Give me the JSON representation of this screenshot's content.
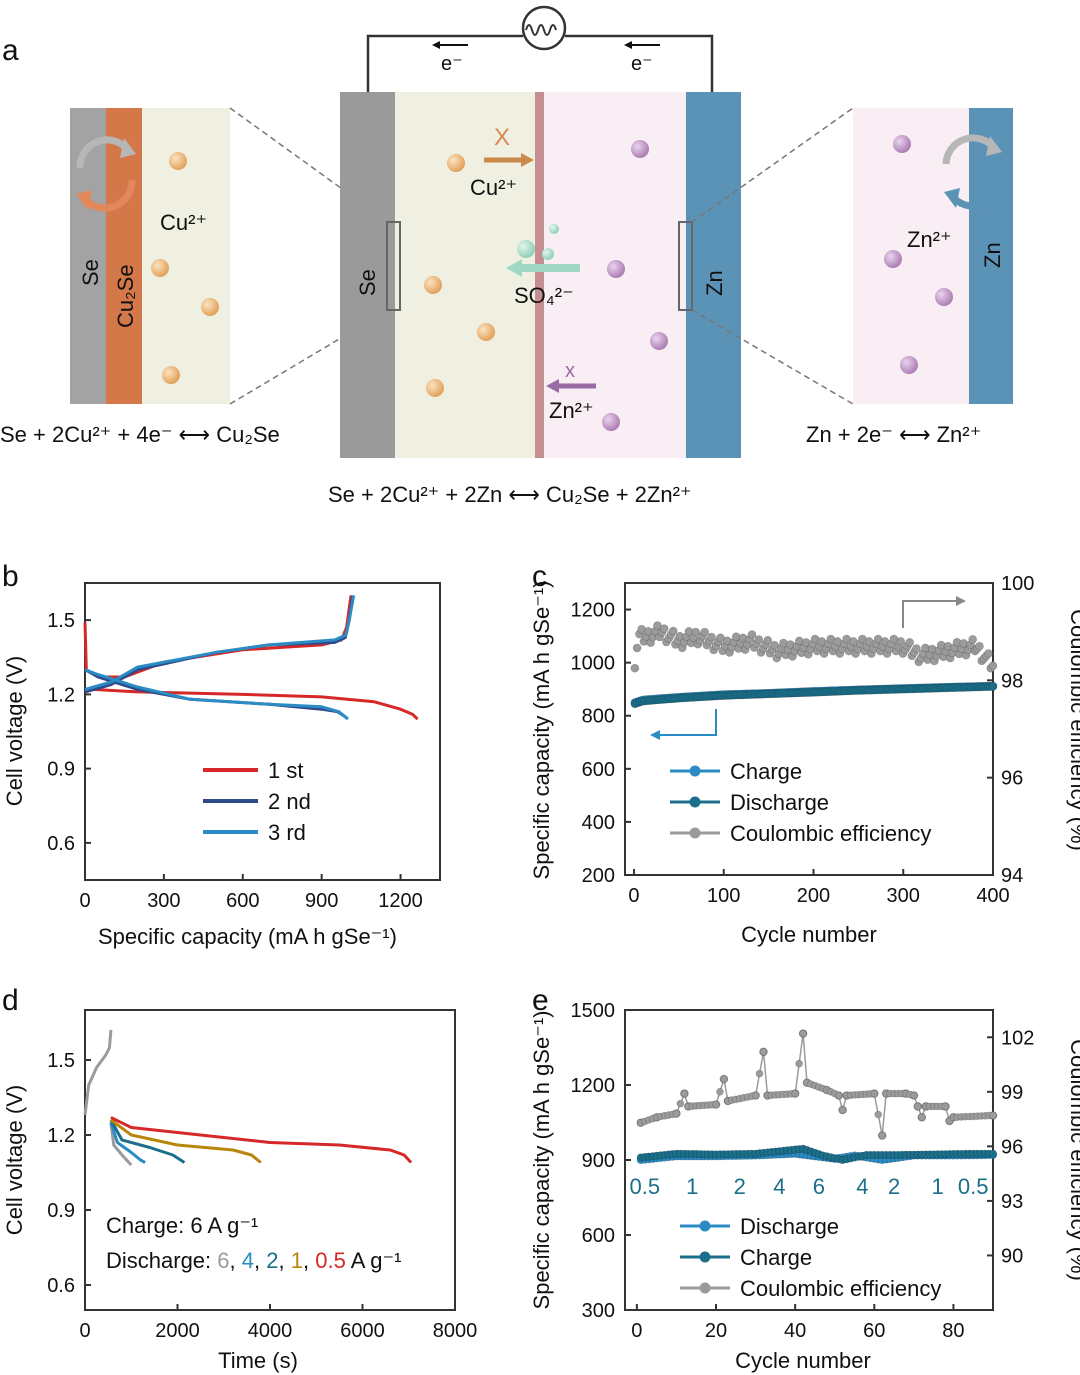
{
  "panels": {
    "a": "a",
    "b": "b",
    "c": "c",
    "d": "d",
    "e": "e"
  },
  "colors": {
    "se": "#9a9a9a",
    "cu2se": "#d4784a",
    "electrolyte_left": "#eff0e2",
    "electrolyte_right": "#f8eef3",
    "zn": "#5b93b7",
    "cu_ion": "#e9a964",
    "zn_ion": "#b98fbf",
    "separator": "#c48e92",
    "so4": "#9fd7c4",
    "red": "#d62828",
    "navy": "#2e4a8a",
    "blue": "#2b8cc4",
    "teal": "#1b7e98",
    "grey": "#9b9b9b",
    "gold": "#b8860b"
  },
  "schematic": {
    "electron_left": "e⁻",
    "electron_right": "e⁻",
    "left_zoom": {
      "se": "Se",
      "cu2se": "Cu₂Se",
      "ion": "Cu²⁺"
    },
    "cell": {
      "se": "Se",
      "zn": "Zn",
      "cu_ion": "Cu²⁺",
      "so4": "SO₄²⁻",
      "zn_ion": "Zn²⁺",
      "cross_cu": "X",
      "cross_zn": "x"
    },
    "right_zoom": {
      "zn": "Zn",
      "ion": "Zn²⁺"
    },
    "eq_left": "Se + 2Cu²⁺ + 4e⁻ ⟷ Cu₂Se",
    "eq_right": "Zn + 2e⁻ ⟷ Zn²⁺",
    "eq_total": "Se + 2Cu²⁺ + 2Zn ⟷ Cu₂Se + 2Zn²⁺"
  },
  "chart_data": [
    {
      "id": "b",
      "type": "line",
      "xlabel": "Specific capacity (mA h gSe⁻¹)",
      "ylabel": "Cell voltage (V)",
      "xlim": [
        0,
        1350
      ],
      "ylim": [
        0.45,
        1.65
      ],
      "xticks": [
        "0",
        "300",
        "600",
        "900",
        "1200"
      ],
      "yticks": [
        "0.6",
        "0.9",
        "1.2",
        "1.5"
      ],
      "legend": "center",
      "series": [
        {
          "name": "1 st",
          "color": "#d62828",
          "charge": [
            [
              0,
              1.49
            ],
            [
              5,
              1.3
            ],
            [
              50,
              1.27
            ],
            [
              150,
              1.27
            ],
            [
              300,
              1.33
            ],
            [
              600,
              1.38
            ],
            [
              900,
              1.4
            ],
            [
              975,
              1.42
            ],
            [
              995,
              1.47
            ],
            [
              1005,
              1.55
            ],
            [
              1012,
              1.6
            ]
          ],
          "discharge": [
            [
              0,
              1.21
            ],
            [
              30,
              1.22
            ],
            [
              200,
              1.21
            ],
            [
              600,
              1.2
            ],
            [
              900,
              1.19
            ],
            [
              1100,
              1.17
            ],
            [
              1200,
              1.14
            ],
            [
              1245,
              1.12
            ],
            [
              1265,
              1.1
            ]
          ]
        },
        {
          "name": "2 nd",
          "color": "#2e4a8a",
          "charge": [
            [
              0,
              1.21
            ],
            [
              100,
              1.24
            ],
            [
              200,
              1.3
            ],
            [
              500,
              1.37
            ],
            [
              700,
              1.4
            ],
            [
              950,
              1.41
            ],
            [
              990,
              1.43
            ],
            [
              1005,
              1.5
            ],
            [
              1018,
              1.6
            ]
          ],
          "discharge": [
            [
              0,
              1.3
            ],
            [
              50,
              1.27
            ],
            [
              200,
              1.22
            ],
            [
              400,
              1.18
            ],
            [
              700,
              1.16
            ],
            [
              900,
              1.14
            ],
            [
              960,
              1.13
            ],
            [
              990,
              1.11
            ]
          ]
        },
        {
          "name": "3 rd",
          "color": "#2b8cc4",
          "charge": [
            [
              0,
              1.22
            ],
            [
              100,
              1.25
            ],
            [
              200,
              1.31
            ],
            [
              500,
              1.37
            ],
            [
              700,
              1.4
            ],
            [
              950,
              1.42
            ],
            [
              992,
              1.44
            ],
            [
              1008,
              1.52
            ],
            [
              1022,
              1.6
            ]
          ],
          "discharge": [
            [
              0,
              1.3
            ],
            [
              50,
              1.28
            ],
            [
              200,
              1.23
            ],
            [
              400,
              1.18
            ],
            [
              700,
              1.16
            ],
            [
              900,
              1.15
            ],
            [
              965,
              1.13
            ],
            [
              1000,
              1.1
            ]
          ]
        }
      ]
    },
    {
      "id": "c",
      "type": "scatter",
      "xlabel": "Cycle number",
      "ylabel_left": "Specific capacity (mA h gSe⁻¹)",
      "ylabel_right": "Coulombic efficiency (%)",
      "xlim": [
        -10,
        400
      ],
      "ylim_left": [
        200,
        1300
      ],
      "ylim_right": [
        94,
        100
      ],
      "xticks": [
        "0",
        "100",
        "200",
        "300",
        "400"
      ],
      "yticks_left": [
        "200",
        "400",
        "600",
        "800",
        "1000",
        "1200"
      ],
      "yticks_right": [
        "94",
        "96",
        "98",
        "100"
      ],
      "legend": "bottom-left",
      "series": [
        {
          "name": "Charge",
          "axis": "left",
          "color": "#2b8cc4",
          "points": [
            [
              1,
              850
            ],
            [
              10,
              860
            ],
            [
              50,
              870
            ],
            [
              100,
              880
            ],
            [
              150,
              885
            ],
            [
              200,
              892
            ],
            [
              250,
              898
            ],
            [
              300,
              903
            ],
            [
              350,
              908
            ],
            [
              400,
              912
            ]
          ]
        },
        {
          "name": "Discharge",
          "axis": "left",
          "color": "#1b6f8a",
          "points": [
            [
              1,
              845
            ],
            [
              10,
              855
            ],
            [
              50,
              866
            ],
            [
              100,
              876
            ],
            [
              150,
              882
            ],
            [
              200,
              888
            ],
            [
              250,
              895
            ],
            [
              300,
              900
            ],
            [
              350,
              905
            ],
            [
              400,
              910
            ]
          ]
        },
        {
          "name": "Coulombic efficiency",
          "axis": "right",
          "color": "#9b9b9b",
          "points": [
            [
              1,
              98.4
            ],
            [
              5,
              98.9
            ],
            [
              15,
              98.9
            ],
            [
              30,
              99.0
            ],
            [
              50,
              98.8
            ],
            [
              70,
              98.9
            ],
            [
              100,
              98.7
            ],
            [
              130,
              98.8
            ],
            [
              160,
              98.6
            ],
            [
              200,
              98.7
            ],
            [
              240,
              98.7
            ],
            [
              280,
              98.7
            ],
            [
              300,
              98.7
            ],
            [
              320,
              98.5
            ],
            [
              350,
              98.6
            ],
            [
              380,
              98.7
            ],
            [
              400,
              98.3
            ]
          ]
        }
      ]
    },
    {
      "id": "d",
      "type": "line",
      "xlabel": "Time (s)",
      "ylabel": "Cell voltage (V)",
      "xlim": [
        0,
        8000
      ],
      "ylim": [
        0.5,
        1.7
      ],
      "xticks": [
        "0",
        "2000",
        "4000",
        "6000",
        "8000"
      ],
      "yticks": [
        "0.6",
        "0.9",
        "1.2",
        "1.5"
      ],
      "annotation_charge": "Charge: 6 A g⁻¹",
      "annotation_discharge_prefix": "Discharge:",
      "rates": [
        {
          "label": "6",
          "color": "#9b9b9b"
        },
        {
          "label": "4",
          "color": "#2b8cc4"
        },
        {
          "label": "2",
          "color": "#1b6f8a"
        },
        {
          "label": "1",
          "color": "#b8860b"
        },
        {
          "label": "0.5",
          "color": "#d62828"
        }
      ],
      "annotation_unit": "A g⁻¹",
      "series": [
        {
          "name": "charge",
          "color": "#9b9b9b",
          "points": [
            [
              0,
              1.28
            ],
            [
              80,
              1.4
            ],
            [
              250,
              1.47
            ],
            [
              450,
              1.52
            ],
            [
              530,
              1.55
            ],
            [
              560,
              1.62
            ]
          ]
        },
        {
          "name": "6",
          "color": "#9b9b9b",
          "points": [
            [
              560,
              1.25
            ],
            [
              620,
              1.16
            ],
            [
              800,
              1.12
            ],
            [
              950,
              1.09
            ],
            [
              1000,
              1.08
            ]
          ]
        },
        {
          "name": "4",
          "color": "#2b8cc4",
          "points": [
            [
              560,
              1.25
            ],
            [
              700,
              1.17
            ],
            [
              1000,
              1.13
            ],
            [
              1200,
              1.1
            ],
            [
              1300,
              1.09
            ]
          ]
        },
        {
          "name": "2",
          "color": "#1b6f8a",
          "points": [
            [
              560,
              1.26
            ],
            [
              800,
              1.18
            ],
            [
              1400,
              1.15
            ],
            [
              1900,
              1.12
            ],
            [
              2150,
              1.09
            ]
          ]
        },
        {
          "name": "1",
          "color": "#b8860b",
          "points": [
            [
              560,
              1.26
            ],
            [
              1000,
              1.2
            ],
            [
              2000,
              1.16
            ],
            [
              3200,
              1.14
            ],
            [
              3600,
              1.12
            ],
            [
              3800,
              1.09
            ]
          ]
        },
        {
          "name": "0.5",
          "color": "#d62828",
          "points": [
            [
              560,
              1.27
            ],
            [
              1000,
              1.23
            ],
            [
              2500,
              1.2
            ],
            [
              4000,
              1.17
            ],
            [
              5500,
              1.16
            ],
            [
              6600,
              1.14
            ],
            [
              6900,
              1.12
            ],
            [
              7050,
              1.09
            ]
          ]
        }
      ]
    },
    {
      "id": "e",
      "type": "scatter",
      "xlabel": "Cycle number",
      "ylabel_left": "Specific capacity (mA h gSe⁻¹)",
      "ylabel_right": "Coulombic efficiency (%)",
      "xlim": [
        -3,
        90
      ],
      "ylim_left": [
        300,
        1500
      ],
      "ylim_right": [
        87,
        103.5
      ],
      "xticks": [
        "0",
        "20",
        "40",
        "60",
        "80"
      ],
      "yticks_left": [
        "300",
        "600",
        "900",
        "1200",
        "1500"
      ],
      "yticks_right": [
        "90",
        "93",
        "96",
        "99",
        "102"
      ],
      "rate_labels": [
        {
          "text": "0.5",
          "x": 2
        },
        {
          "text": "1",
          "x": 14
        },
        {
          "text": "2",
          "x": 26
        },
        {
          "text": "4",
          "x": 36
        },
        {
          "text": "6",
          "x": 46
        },
        {
          "text": "4",
          "x": 57
        },
        {
          "text": "2",
          "x": 65
        },
        {
          "text": "1",
          "x": 76
        },
        {
          "text": "0.5",
          "x": 85
        }
      ],
      "legend": "bottom-left",
      "series": [
        {
          "name": "Discharge",
          "axis": "left",
          "color": "#2b8cc4",
          "points": [
            [
              1,
              900
            ],
            [
              10,
              915
            ],
            [
              20,
              915
            ],
            [
              30,
              918
            ],
            [
              40,
              925
            ],
            [
              45,
              915
            ],
            [
              50,
              905
            ],
            [
              55,
              918
            ],
            [
              62,
              900
            ],
            [
              70,
              918
            ],
            [
              80,
              918
            ],
            [
              90,
              920
            ]
          ]
        },
        {
          "name": "Charge",
          "axis": "left",
          "color": "#1b6f8a",
          "points": [
            [
              1,
              910
            ],
            [
              10,
              925
            ],
            [
              20,
              922
            ],
            [
              30,
              925
            ],
            [
              42,
              945
            ],
            [
              47,
              918
            ],
            [
              52,
              900
            ],
            [
              58,
              920
            ],
            [
              65,
              920
            ],
            [
              75,
              922
            ],
            [
              85,
              925
            ],
            [
              90,
              925
            ]
          ]
        },
        {
          "name": "Coulombic efficiency",
          "axis": "right",
          "color": "#9b9b9b",
          "points": [
            [
              1,
              97.3
            ],
            [
              5,
              97.6
            ],
            [
              10,
              97.8
            ],
            [
              12,
              98.9
            ],
            [
              13,
              98.2
            ],
            [
              20,
              98.3
            ],
            [
              22,
              99.7
            ],
            [
              23,
              98.5
            ],
            [
              30,
              98.8
            ],
            [
              32,
              101.2
            ],
            [
              33,
              98.8
            ],
            [
              40,
              98.9
            ],
            [
              42,
              102.2
            ],
            [
              43,
              99.5
            ],
            [
              48,
              99.1
            ],
            [
              51,
              98.8
            ],
            [
              52,
              98.0
            ],
            [
              53,
              98.8
            ],
            [
              60,
              98.9
            ],
            [
              62,
              96.6
            ],
            [
              63,
              98.9
            ],
            [
              68,
              98.9
            ],
            [
              70,
              98.8
            ],
            [
              71,
              98.2
            ],
            [
              72,
              97.6
            ],
            [
              73,
              98.2
            ],
            [
              78,
              98.2
            ],
            [
              79,
              97.4
            ],
            [
              80,
              97.6
            ],
            [
              90,
              97.7
            ]
          ]
        }
      ]
    }
  ]
}
